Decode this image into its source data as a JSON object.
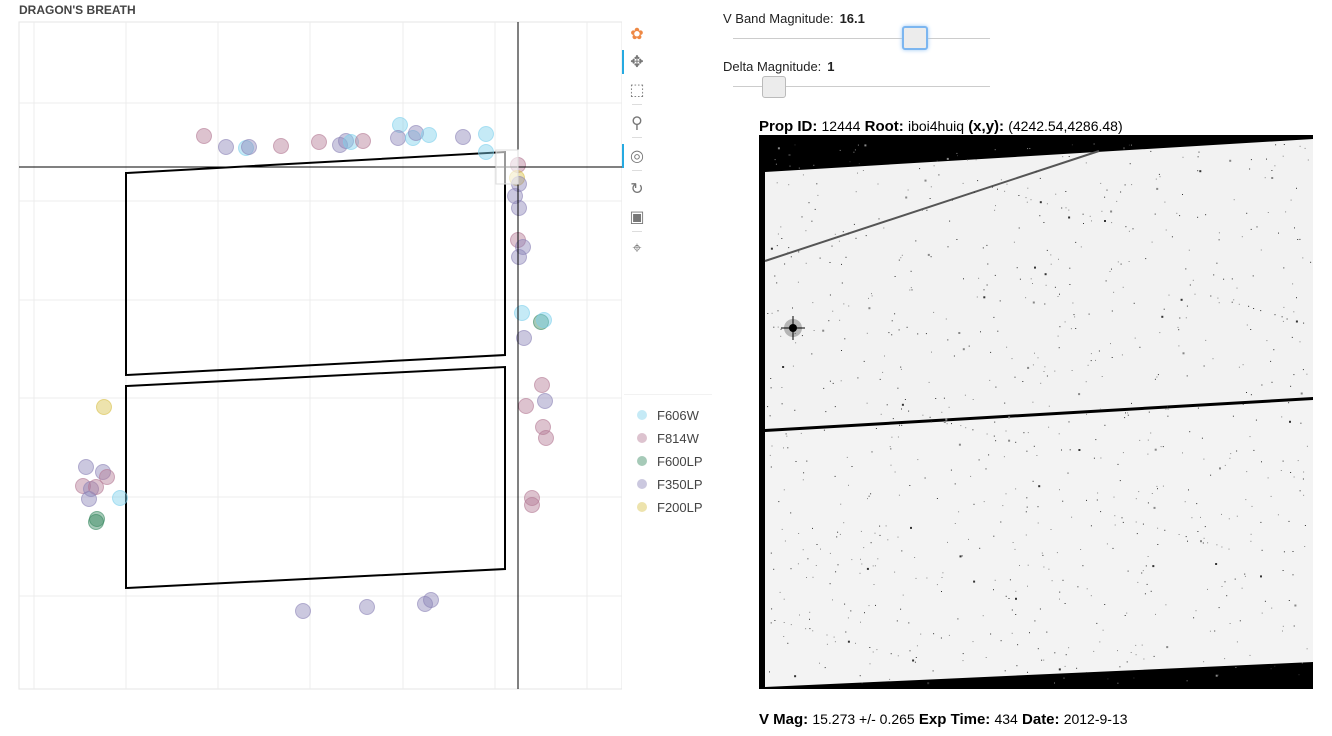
{
  "plot": {
    "title": "DRAGON'S BREATH"
  },
  "toolbar": {
    "tools": [
      {
        "name": "bokeh-logo-icon",
        "glyph": "✿"
      },
      {
        "name": "pan-tool-icon",
        "glyph": "✥"
      },
      {
        "name": "box-zoom-tool-icon",
        "glyph": "⬚"
      },
      {
        "name": "wheel-zoom-tool-icon",
        "glyph": "⚲"
      },
      {
        "name": "tap-tool-icon",
        "glyph": "◎"
      },
      {
        "name": "reset-tool-icon",
        "glyph": "↻"
      },
      {
        "name": "save-tool-icon",
        "glyph": "▣"
      },
      {
        "name": "crosshair-tool-icon",
        "glyph": "⌖"
      }
    ]
  },
  "legend": [
    {
      "label": "F606W",
      "color": "#7fd0ec"
    },
    {
      "label": "F814W",
      "color": "#b47a94"
    },
    {
      "label": "F600LP",
      "color": "#3a8a62"
    },
    {
      "label": "F350LP",
      "color": "#8c84b8"
    },
    {
      "label": "F200LP",
      "color": "#d8c04a"
    }
  ],
  "sliders": {
    "vband": {
      "label": "V Band Magnitude:",
      "value": "16.1"
    },
    "delta": {
      "label": "Delta Magnitude:",
      "value": "1"
    }
  },
  "info_top": {
    "prop_label": "Prop ID:",
    "prop_value": "12444",
    "root_label": "Root:",
    "root_value": "iboi4huiq",
    "xy_label": "(x,y):",
    "xy_value": "(4242.54,4286.48)"
  },
  "info_bottom": {
    "vmag_label": "V Mag:",
    "vmag_value": "15.273 +/- 0.265",
    "exp_label": "Exp Time:",
    "exp_value": "434",
    "date_label": "Date:",
    "date_value": "2012-9-13"
  },
  "colors": {
    "F606W": "#7fd0ec",
    "F814W": "#b47a94",
    "F600LP": "#3a8a62",
    "F350LP": "#8c84b8",
    "F200LP": "#d8c04a"
  }
}
